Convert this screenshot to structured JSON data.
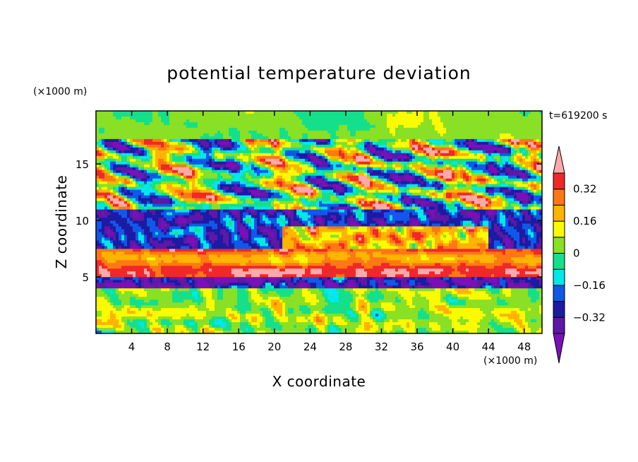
{
  "chart_data": {
    "type": "heatmap",
    "title": "potential temperature deviation",
    "xlabel": "X coordinate",
    "ylabel": "Z coordinate",
    "x_unit": "(×1000 m)",
    "y_unit": "(×1000 m)",
    "time_label": "t=619200 s",
    "xlim": [
      0,
      50
    ],
    "ylim": [
      0,
      19.7
    ],
    "x_ticks": [
      4,
      8,
      12,
      16,
      20,
      24,
      28,
      32,
      36,
      40,
      44,
      48
    ],
    "y_ticks": [
      5,
      10,
      15
    ],
    "colorbar": {
      "levels": [
        -0.4,
        -0.32,
        -0.24,
        -0.16,
        -0.08,
        0,
        0.08,
        0.16,
        0.24,
        0.32,
        0.4
      ],
      "tick_values": [
        0.32,
        0.16,
        0,
        -0.16,
        -0.32
      ],
      "tick_labels": [
        "0.32",
        "0.16",
        "0",
        "−0.16",
        "−0.32"
      ],
      "colors": [
        "#7a10b8",
        "#5d18a6",
        "#1d1aa3",
        "#1058e8",
        "#00e8e8",
        "#14e08c",
        "#8ae024",
        "#fafa00",
        "#ffb400",
        "#ff7814",
        "#f02828",
        "#ffaaaa"
      ]
    },
    "field_description": {
      "layers": [
        {
          "z_range": [
            0,
            4
          ],
          "character": "turbulent, mixed warm and cold cells"
        },
        {
          "z_range": [
            4,
            5
          ],
          "character": "cold band"
        },
        {
          "z_range": [
            5,
            7.5
          ],
          "character": "strong warm layer"
        },
        {
          "z_range": [
            7.5,
            11
          ],
          "character": "cold with warm patches"
        },
        {
          "z_range": [
            11,
            17
          ],
          "character": "alternating warm and cold blobs"
        },
        {
          "z_range": [
            17,
            19.7
          ],
          "character": "near-neutral"
        }
      ]
    }
  }
}
